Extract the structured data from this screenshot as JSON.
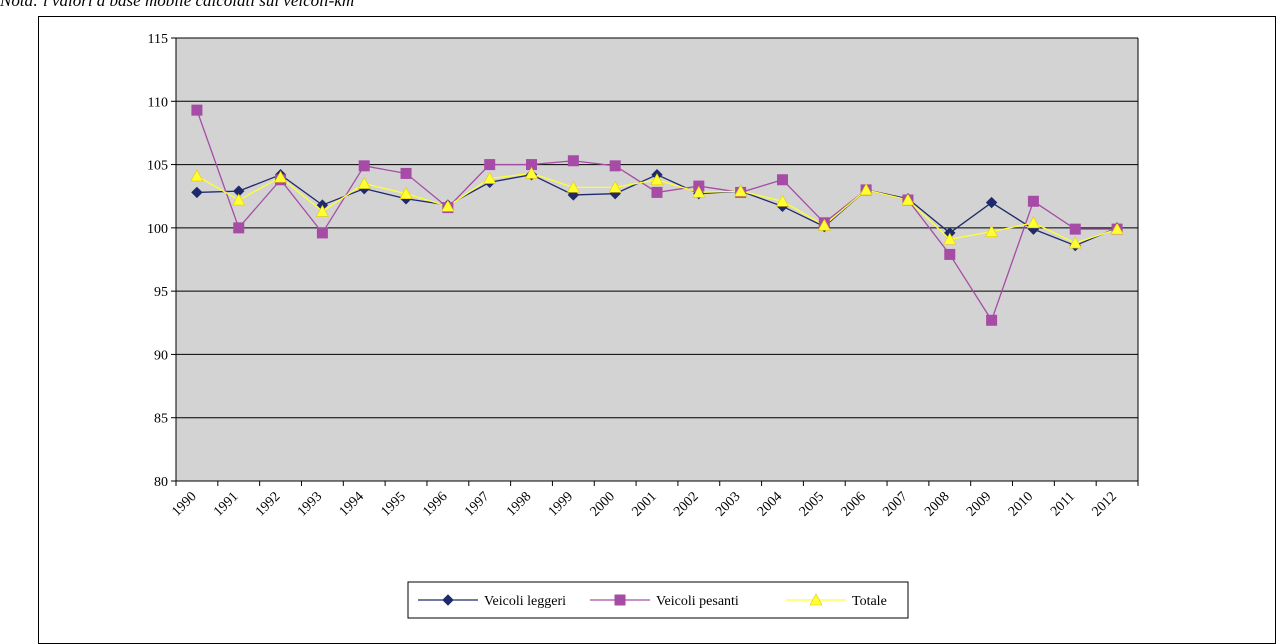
{
  "caption": "Nota: i valori a base mobile calcolati sui veicoli-km",
  "chart_data": {
    "type": "line",
    "title": "",
    "xlabel": "",
    "ylabel": "",
    "ylim": [
      80,
      115
    ],
    "yticks": [
      80,
      85,
      90,
      95,
      100,
      105,
      110,
      115
    ],
    "grid": true,
    "legend_position": "bottom",
    "categories": [
      "1990",
      "1991",
      "1992",
      "1993",
      "1994",
      "1995",
      "1996",
      "1997",
      "1998",
      "1999",
      "2000",
      "2001",
      "2002",
      "2003",
      "2004",
      "2005",
      "2006",
      "2007",
      "2008",
      "2009",
      "2010",
      "2011",
      "2012"
    ],
    "series": [
      {
        "name": "Veicoli leggeri",
        "color": "#1f2a6b",
        "marker": "diamond",
        "values": [
          102.8,
          102.9,
          104.2,
          101.8,
          103.1,
          102.3,
          101.8,
          103.6,
          104.2,
          102.6,
          102.7,
          104.2,
          102.7,
          102.9,
          101.7,
          100.1,
          103.0,
          102.3,
          99.6,
          102.0,
          99.9,
          98.6,
          100.0
        ]
      },
      {
        "name": "Veicoli pesanti",
        "color": "#a64ca6",
        "marker": "square",
        "values": [
          109.3,
          100.0,
          103.8,
          99.6,
          104.9,
          104.3,
          101.6,
          105.0,
          105.0,
          105.3,
          104.9,
          102.8,
          103.3,
          102.8,
          103.8,
          100.4,
          103.0,
          102.2,
          97.9,
          92.7,
          102.1,
          99.9,
          99.9
        ]
      },
      {
        "name": "Totale",
        "color": "#ffff33",
        "marker": "triangle",
        "values": [
          104.1,
          102.2,
          104.0,
          101.3,
          103.5,
          102.7,
          101.7,
          103.9,
          104.3,
          103.2,
          103.2,
          103.8,
          102.8,
          102.9,
          102.1,
          100.2,
          103.0,
          102.2,
          99.1,
          99.7,
          100.4,
          98.8,
          99.9
        ]
      }
    ]
  }
}
